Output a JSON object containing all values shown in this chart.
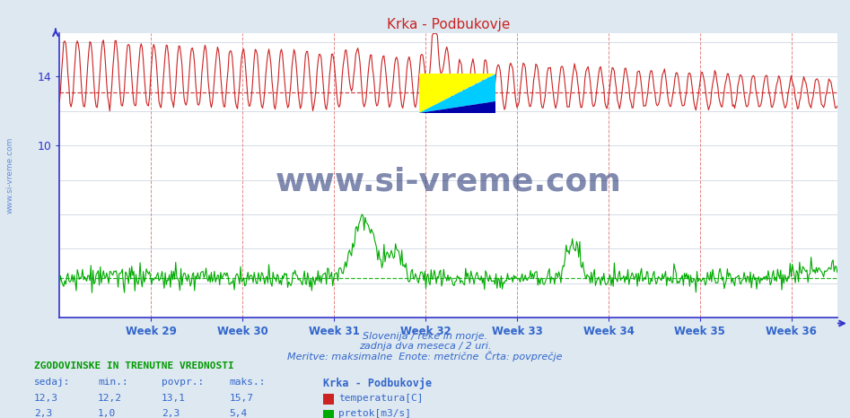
{
  "title": "Krka - Podbukovje",
  "bg_color": "#dde8f0",
  "plot_bg_color": "#ffffff",
  "temp_color": "#cc2222",
  "flow_color": "#00aa00",
  "avg_temp": 13.1,
  "avg_flow": 2.3,
  "temp_min": 12.2,
  "temp_max": 15.7,
  "temp_cur": 12.3,
  "temp_avg_disp": 13.1,
  "flow_min": 1.0,
  "flow_max": 5.4,
  "flow_cur": 2.3,
  "flow_avg": 2.3,
  "ylim_min": 0,
  "ylim_max": 16.5,
  "xlabel_weeks": [
    "Week 29",
    "Week 30",
    "Week 31",
    "Week 32",
    "Week 33",
    "Week 34",
    "Week 35",
    "Week 36"
  ],
  "footnote1": "Slovenija / reke in morje.",
  "footnote2": "zadnja dva meseca / 2 uri.",
  "footnote3": "Meritve: maksimalne  Enote: metrične  Črta: povprečje",
  "legend_title": "Krka - Podbukovje",
  "label_temp": "temperatura[C]",
  "label_flow": "pretok[m3/s]",
  "table_header": "ZGODOVINSKE IN TRENUTNE VREDNOSTI",
  "col_headers": [
    "sedaj:",
    "min.:",
    "povpr.:",
    "maks.:"
  ],
  "axis_color": "#3333cc",
  "text_color": "#3366cc",
  "wm_color": "#1a2a6e",
  "n_points": 744
}
